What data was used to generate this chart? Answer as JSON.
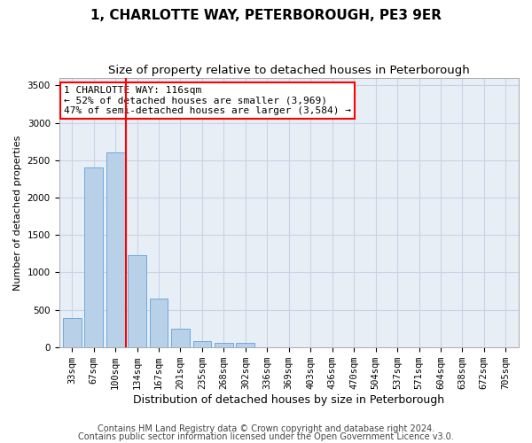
{
  "title": "1, CHARLOTTE WAY, PETERBOROUGH, PE3 9ER",
  "subtitle": "Size of property relative to detached houses in Peterborough",
  "xlabel": "Distribution of detached houses by size in Peterborough",
  "ylabel": "Number of detached properties",
  "footnote1": "Contains HM Land Registry data © Crown copyright and database right 2024.",
  "footnote2": "Contains public sector information licensed under the Open Government Licence v3.0.",
  "categories": [
    "33sqm",
    "67sqm",
    "100sqm",
    "134sqm",
    "167sqm",
    "201sqm",
    "235sqm",
    "268sqm",
    "302sqm",
    "336sqm",
    "369sqm",
    "403sqm",
    "436sqm",
    "470sqm",
    "504sqm",
    "537sqm",
    "571sqm",
    "604sqm",
    "638sqm",
    "672sqm",
    "705sqm"
  ],
  "values": [
    390,
    2400,
    2610,
    1230,
    650,
    250,
    85,
    60,
    55,
    0,
    0,
    0,
    0,
    0,
    0,
    0,
    0,
    0,
    0,
    0,
    0
  ],
  "bar_color": "#b8d0e8",
  "bar_edge_color": "#6aabe0",
  "grid_color": "#c8d4e4",
  "bg_color": "#e8eef6",
  "vline_x_index": 2.5,
  "vline_color": "red",
  "annotation_box_text": "1 CHARLOTTE WAY: 116sqm\n← 52% of detached houses are smaller (3,969)\n47% of semi-detached houses are larger (3,584) →",
  "ylim": [
    0,
    3600
  ],
  "yticks": [
    0,
    500,
    1000,
    1500,
    2000,
    2500,
    3000,
    3500
  ],
  "title_fontsize": 11,
  "subtitle_fontsize": 9.5,
  "xlabel_fontsize": 9,
  "ylabel_fontsize": 8,
  "tick_fontsize": 7.5,
  "annot_fontsize": 8,
  "footnote_fontsize": 7
}
